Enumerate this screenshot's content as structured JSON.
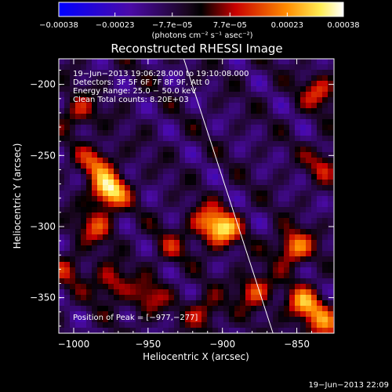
{
  "chart_data": {
    "type": "heatmap",
    "title": "Reconstructed RHESSI Image",
    "xlabel": "Heliocentric X (arcsec)",
    "ylabel": "Heliocentric Y (arcsec)",
    "xlim": [
      -1010,
      -825
    ],
    "ylim": [
      -375,
      -182
    ],
    "x_ticks": [
      -1000,
      -950,
      -900,
      -850
    ],
    "x_tick_labels": [
      "−1000",
      "−950",
      "−900",
      "−850"
    ],
    "y_ticks": [
      -200,
      -250,
      -300,
      -350
    ],
    "y_tick_labels": [
      "−200",
      "−250",
      "−300",
      "−350"
    ],
    "colorbar": {
      "ticks": [
        -0.00038,
        -0.00023,
        -7.7e-05,
        7.7e-05,
        0.00023,
        0.00038
      ],
      "tick_labels": [
        "−0.00038",
        "−0.00023",
        "−7.7e−05",
        "7.7e−05",
        "0.00023",
        "0.00038"
      ],
      "unit_label": "(photons cm⁻² s⁻¹ asec⁻²)",
      "range": [
        -0.00038,
        0.00038
      ]
    },
    "info_lines": [
      "19−Jun−2013 19:06:28.000 to 19:10:08.000",
      "Detectors: 3F 5F 6F 7F 8F 9F, Att 0",
      "Energy Range: 25.0 − 50.0 keV",
      "Clean     Total counts: 8.20E+03"
    ],
    "peak_label": "Position of Peak = [−977,−277]",
    "limb_line": [
      [
        -926,
        -182
      ],
      [
        -866,
        -375
      ]
    ],
    "sources": [
      {
        "x": -976,
        "y": -275,
        "strength": 1.0
      },
      {
        "x": -985,
        "y": -255,
        "strength": 0.55
      },
      {
        "x": -997,
        "y": -220,
        "strength": 0.45
      },
      {
        "x": -985,
        "y": -300,
        "strength": 0.5
      },
      {
        "x": -975,
        "y": -340,
        "strength": 0.5
      },
      {
        "x": -1003,
        "y": -330,
        "strength": 0.35
      },
      {
        "x": -900,
        "y": -302,
        "strength": 0.85
      },
      {
        "x": -912,
        "y": -296,
        "strength": 0.45
      },
      {
        "x": -878,
        "y": -345,
        "strength": 0.6
      },
      {
        "x": -852,
        "y": -315,
        "strength": 0.75
      },
      {
        "x": -845,
        "y": -355,
        "strength": 0.75
      },
      {
        "x": -832,
        "y": -370,
        "strength": 0.55
      },
      {
        "x": -912,
        "y": -360,
        "strength": 0.45
      },
      {
        "x": -835,
        "y": -205,
        "strength": 0.5
      },
      {
        "x": -832,
        "y": -255,
        "strength": 0.4
      },
      {
        "x": -950,
        "y": -350,
        "strength": 0.45
      },
      {
        "x": -935,
        "y": -315,
        "strength": 0.3
      }
    ]
  },
  "footer": {
    "timestamp": "19−Jun−2013 22:09"
  }
}
